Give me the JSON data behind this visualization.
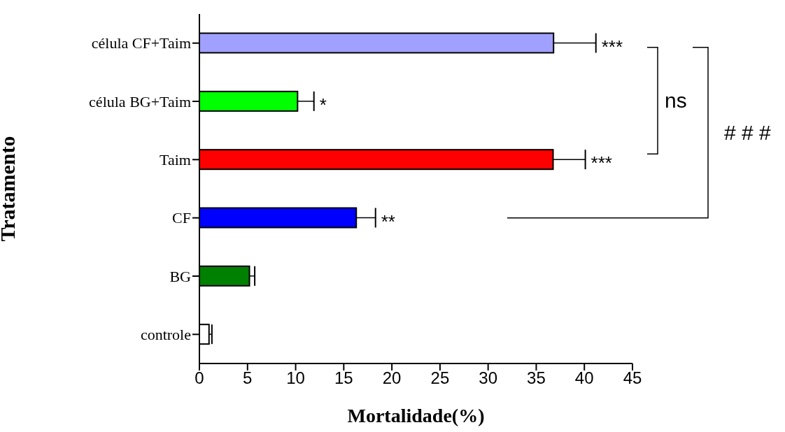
{
  "chart_data": {
    "type": "bar",
    "orientation": "horizontal",
    "xlabel": "Mortalidade(%)",
    "ylabel": "Tratamento",
    "categories": [
      "célula CF+Taim",
      "célula BG+Taim",
      "Taim",
      "CF",
      "BG",
      "controle"
    ],
    "values": [
      36.8,
      10.2,
      36.75,
      16.3,
      5.2,
      1.0
    ],
    "colors": [
      "#a0a0ff",
      "#00ff00",
      "#ff0000",
      "#0000ff",
      "#008000",
      "#ffffff"
    ],
    "errors": [
      [
        36.8,
        41.2
      ],
      [
        10.2,
        11.9
      ],
      [
        36.75,
        40.1
      ],
      [
        16.3,
        18.3
      ],
      [
        5.2,
        5.75
      ],
      [
        1.0,
        1.3
      ]
    ],
    "xlim": [
      0,
      45
    ],
    "xticks": [
      0,
      5,
      10,
      15,
      20,
      25,
      30,
      35,
      40,
      45
    ],
    "annotations": [
      {
        "text": "***",
        "x": 41.2,
        "y": "célula CF+Taim"
      },
      {
        "text": "*",
        "x": 11.9,
        "y": "célula BG+Taim"
      },
      {
        "text": "***",
        "x": 40.1,
        "y": "Taim"
      },
      {
        "text": "**",
        "x": 18.3,
        "y": "CF"
      },
      "ns",
      "# # #"
    ]
  }
}
